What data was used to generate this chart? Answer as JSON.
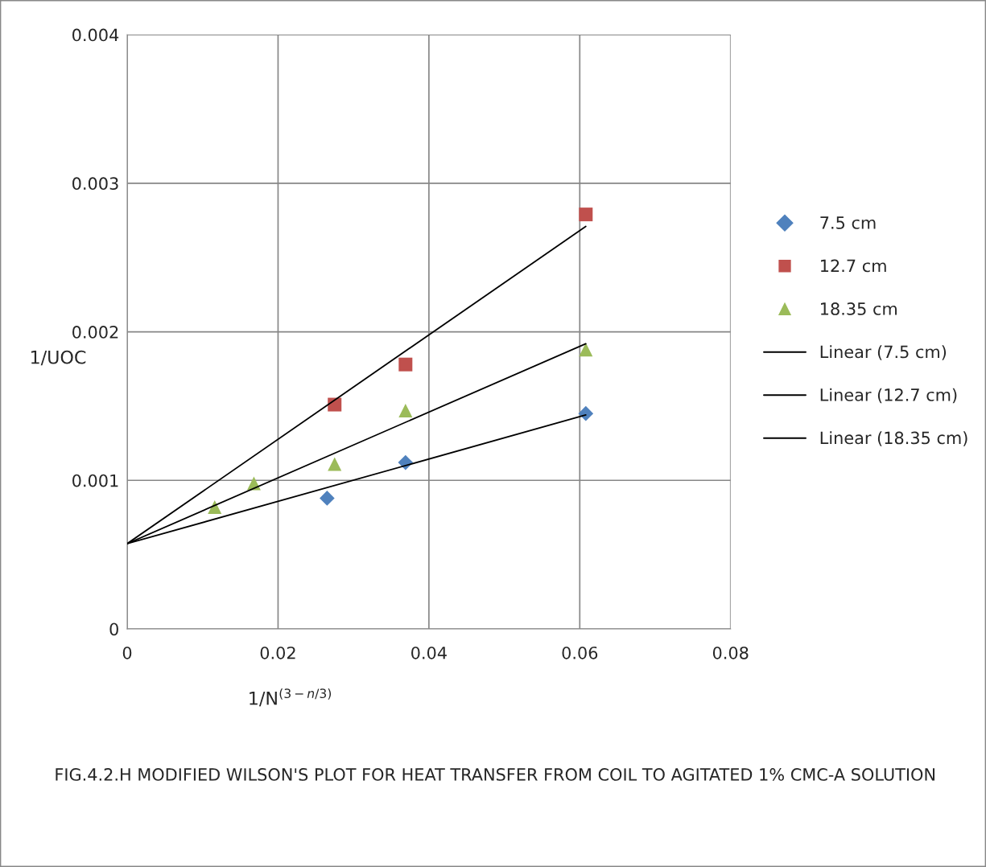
{
  "chart_data": {
    "type": "scatter",
    "xlabel": "1/N$^{(3−n/3)}$",
    "ylabel": "1/UOC",
    "annotations": [
      "FIG.4.2.H MODIFIED WILSON'S PLOT FOR HEAT TRANSFER FROM COIL TO AGITATED 1% CMC-A SOLUTION"
    ],
    "xlim": [
      0,
      0.08
    ],
    "xticks": [
      0,
      0.02,
      0.04,
      0.06,
      0.08
    ],
    "ylim": [
      0,
      0.004
    ],
    "yticks": [
      0,
      0.001,
      0.002,
      0.003,
      0.004
    ],
    "grid": true,
    "legend": "right",
    "series": [
      {
        "name": "7.5 cm",
        "color": "#4f81bd",
        "marker": "diamond",
        "x": [
          0.0265,
          0.0369,
          0.0608
        ],
        "values": [
          0.00088,
          0.00112,
          0.00145
        ]
      },
      {
        "name": "12.7 cm",
        "color": "#c0504d",
        "marker": "square",
        "x": [
          0.0275,
          0.0369,
          0.0608
        ],
        "values": [
          0.00151,
          0.00178,
          0.00279
        ]
      },
      {
        "name": "18.35 cm",
        "color": "#9bbb59",
        "marker": "triangle",
        "x": [
          0.0116,
          0.0168,
          0.0275,
          0.0369,
          0.0608
        ],
        "values": [
          0.00082,
          0.00098,
          0.00111,
          0.00147,
          0.00188
        ]
      },
      {
        "name": "Linear (7.5 cm)",
        "type": "line",
        "color": "#000000",
        "marker": "none",
        "x": [
          0,
          0.0608
        ],
        "values": [
          0.000574,
          0.00144
        ]
      },
      {
        "name": "Linear (12.7 cm)",
        "type": "line",
        "color": "#000000",
        "marker": "none",
        "x": [
          0,
          0.0608
        ],
        "values": [
          0.000574,
          0.00271
        ]
      },
      {
        "name": "Linear (18.35 cm)",
        "type": "line",
        "color": "#000000",
        "marker": "none",
        "x": [
          0,
          0.0608
        ],
        "values": [
          0.000574,
          0.00192
        ]
      }
    ]
  }
}
